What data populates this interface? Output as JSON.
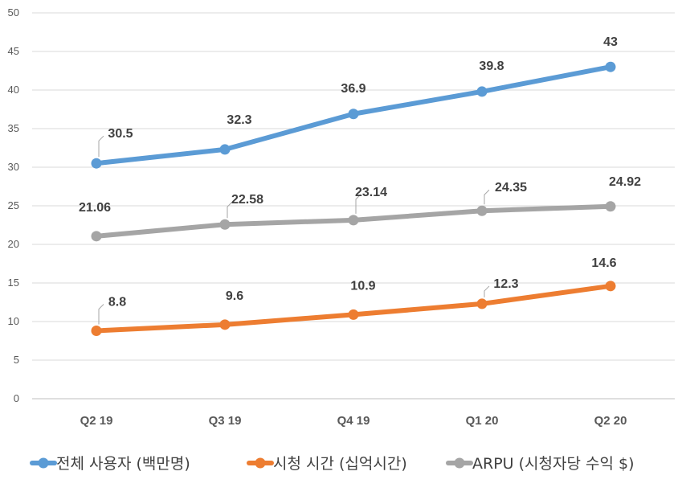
{
  "chart_data": {
    "type": "line",
    "categories": [
      "Q2 19",
      "Q3 19",
      "Q4 19",
      "Q1 20",
      "Q2 20"
    ],
    "ylim": [
      0,
      50
    ],
    "yticks": [
      0,
      5,
      10,
      15,
      20,
      25,
      30,
      35,
      40,
      45,
      50
    ],
    "ytick_labels": [
      "0",
      "5",
      "10",
      "15",
      "20",
      "25",
      "30",
      "35",
      "40",
      "45",
      "50"
    ],
    "grid": true,
    "legend_position": "bottom",
    "series": [
      {
        "name": "전체 사용자 (백만명)",
        "color": "#5B9BD5",
        "values": [
          30.5,
          32.3,
          36.9,
          39.8,
          43
        ],
        "labels": [
          "30.5",
          "32.3",
          "36.9",
          "39.8",
          "43"
        ]
      },
      {
        "name": "시청 시간 (십억시간)",
        "color": "#ED7D31",
        "values": [
          8.8,
          9.6,
          10.9,
          12.3,
          14.6
        ],
        "labels": [
          "8.8",
          "9.6",
          "10.9",
          "12.3",
          "14.6"
        ]
      },
      {
        "name": "ARPU (시청자당 수익 $)",
        "color": "#A5A5A5",
        "values": [
          21.06,
          22.58,
          23.14,
          24.35,
          24.92
        ],
        "labels": [
          "21.06",
          "22.58",
          "23.14",
          "24.35",
          "24.92"
        ]
      }
    ]
  }
}
